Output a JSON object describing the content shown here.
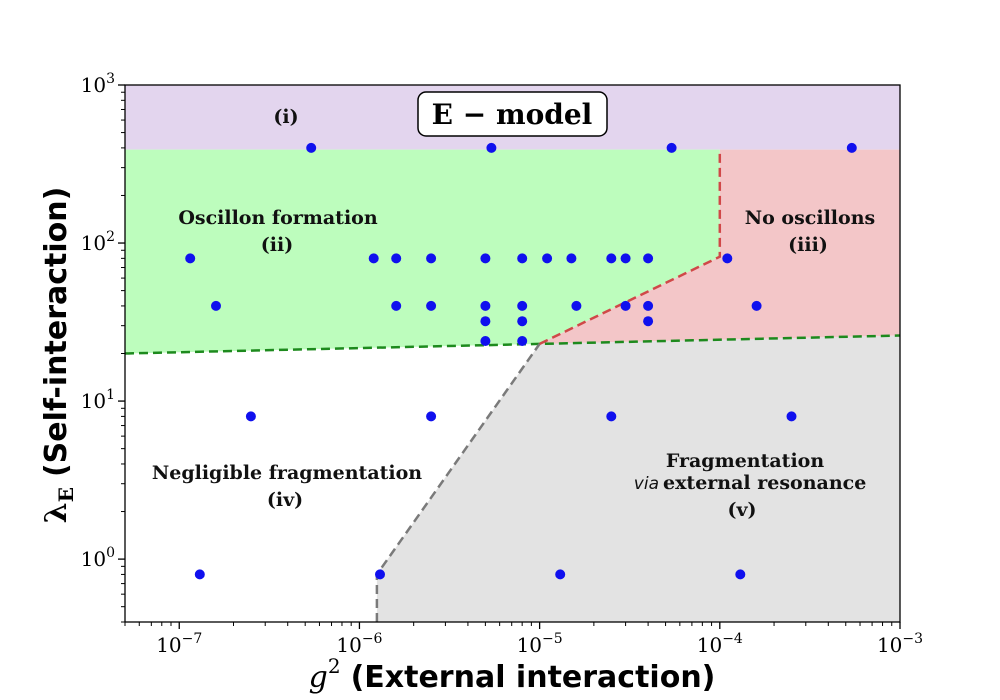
{
  "chart_data": {
    "type": "scatter",
    "title": "E − model",
    "xlabel": {
      "symbol": "g",
      "sup": "2",
      "text": "(External interaction)"
    },
    "ylabel": {
      "symbol": "λ",
      "sub": "E",
      "text": "(Self-interaction)"
    },
    "xscale": "log",
    "yscale": "log",
    "xlim": [
      5e-08,
      0.001
    ],
    "ylim": [
      0.4,
      1000
    ],
    "x_ticks": [
      {
        "value": 1e-07,
        "mant": "10",
        "exp": "−7"
      },
      {
        "value": 1e-06,
        "mant": "10",
        "exp": "−6"
      },
      {
        "value": 1e-05,
        "mant": "10",
        "exp": "−5"
      },
      {
        "value": 0.0001,
        "mant": "10",
        "exp": "−4"
      },
      {
        "value": 0.001,
        "mant": "10",
        "exp": "−3"
      }
    ],
    "y_ticks": [
      {
        "value": 1,
        "mant": "10",
        "exp": "0"
      },
      {
        "value": 10,
        "mant": "10",
        "exp": "1"
      },
      {
        "value": 100,
        "mant": "10",
        "exp": "2"
      },
      {
        "value": 1000,
        "mant": "10",
        "exp": "3"
      }
    ],
    "colors": {
      "region_i": "#e3d5ee",
      "region_ii": "#bdfdbd",
      "region_iii": "#f3c6c8",
      "region_v": "#e3e3e3",
      "points": "#1010ee",
      "green_boundary": "#1d8a1d",
      "red_boundary": "#d04848",
      "gray_boundary": "#7a7a7a"
    },
    "regions": [
      {
        "id": "i",
        "labels": [
          "(i)"
        ]
      },
      {
        "id": "ii",
        "labels": [
          "Oscillon formation",
          "(ii)"
        ]
      },
      {
        "id": "iii",
        "labels": [
          "No oscillons",
          "(iii)"
        ]
      },
      {
        "id": "iv",
        "labels": [
          "Negligible fragmentation",
          "(iv)"
        ]
      },
      {
        "id": "v",
        "labels": [
          "Fragmentation",
          "via",
          "external resonance",
          "(v)"
        ]
      }
    ],
    "boundaries": {
      "horizontal_top_y": 390,
      "green": [
        [
          5e-08,
          20
        ],
        [
          1e-05,
          23
        ],
        [
          0.001,
          26
        ]
      ],
      "gray": [
        [
          1.25e-06,
          0.4
        ],
        [
          1.25e-06,
          0.8
        ],
        [
          1e-05,
          23
        ]
      ],
      "red": [
        [
          1e-05,
          23
        ],
        [
          0.0001,
          82
        ],
        [
          0.0001,
          390
        ]
      ]
    },
    "points": [
      [
        5.4e-07,
        400
      ],
      [
        5.4e-06,
        400
      ],
      [
        5.4e-05,
        400
      ],
      [
        0.00054,
        400
      ],
      [
        1.15e-07,
        80
      ],
      [
        1.2e-06,
        80
      ],
      [
        1.6e-06,
        80
      ],
      [
        2.5e-06,
        80
      ],
      [
        5e-06,
        80
      ],
      [
        8e-06,
        80
      ],
      [
        1.1e-05,
        80
      ],
      [
        1.5e-05,
        80
      ],
      [
        2.5e-05,
        80
      ],
      [
        3e-05,
        80
      ],
      [
        4e-05,
        80
      ],
      [
        0.00011,
        80
      ],
      [
        1.6e-07,
        40
      ],
      [
        1.6e-06,
        40
      ],
      [
        2.5e-06,
        40
      ],
      [
        5e-06,
        40
      ],
      [
        8e-06,
        40
      ],
      [
        1.6e-05,
        40
      ],
      [
        3e-05,
        40
      ],
      [
        4e-05,
        40
      ],
      [
        0.00016,
        40
      ],
      [
        5e-06,
        32
      ],
      [
        8e-06,
        32
      ],
      [
        4e-05,
        32
      ],
      [
        5e-06,
        24
      ],
      [
        8e-06,
        24
      ],
      [
        2.5e-07,
        8
      ],
      [
        2.5e-06,
        8
      ],
      [
        2.5e-05,
        8
      ],
      [
        0.00025,
        8
      ],
      [
        1.3e-07,
        0.8
      ],
      [
        1.3e-06,
        0.8
      ],
      [
        1.3e-05,
        0.8
      ],
      [
        0.00013,
        0.8
      ]
    ]
  }
}
